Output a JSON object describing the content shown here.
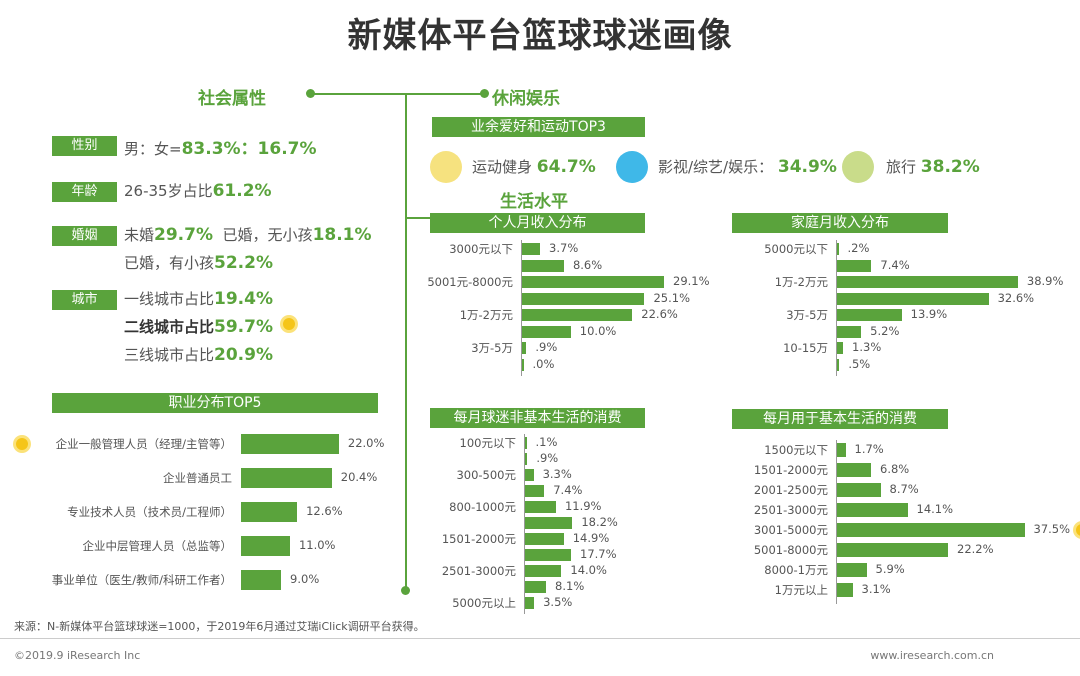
{
  "title": "新媒体平台篮球球迷画像",
  "social": {
    "heading": "社会属性",
    "gender": {
      "tag": "性别",
      "text": "男：女=",
      "value": "83.3%：16.7%"
    },
    "age": {
      "tag": "年龄",
      "text": "26-35岁占比",
      "value": "61.2%"
    },
    "marriage": {
      "tag": "婚姻",
      "t1": "未婚",
      "v1": "29.7%",
      "t2": "已婚，无小孩",
      "v2": "18.1%",
      "t3": "已婚，有小孩",
      "v3": "52.2%"
    },
    "city": {
      "tag": "城市",
      "t1": "一线城市占比",
      "v1": "19.4%",
      "t2": "二线城市占比",
      "v2": "59.7%",
      "t3": "三线城市占比",
      "v3": "20.9%"
    }
  },
  "leisure": {
    "heading": "休闲娱乐",
    "top3_header": "业余爱好和运动TOP3",
    "items": [
      {
        "icon": "fitness-icon",
        "label": "运动健身",
        "value": "64.7%",
        "color": "#f6e27f"
      },
      {
        "icon": "tv-icon",
        "label": "影视/综艺/娱乐：",
        "value": "34.9%",
        "color": "#3fb8e8"
      },
      {
        "icon": "travel-icon",
        "label": "旅行",
        "value": "38.2%",
        "color": "#c9dc8a"
      }
    ]
  },
  "living_heading": "生活水平",
  "colors": {
    "accent": "#5aa33c",
    "highlight": "#f5c518"
  },
  "chart_data": [
    {
      "type": "bar",
      "orientation": "horizontal",
      "title": "职业分布TOP5",
      "categories": [
        "企业一般管理人员（经理/主管等）",
        "企业普通员工",
        "专业技术人员（技术员/工程师）",
        "企业中层管理人员（总监等）",
        "事业单位（医生/教师/科研工作者）"
      ],
      "values": [
        22.0,
        20.4,
        12.6,
        11.0,
        9.0
      ],
      "value_labels": [
        "22.0%",
        "20.4%",
        "12.6%",
        "11.0%",
        "9.0%"
      ],
      "highlight_index": 0
    },
    {
      "type": "bar",
      "orientation": "horizontal",
      "title": "个人月收入分布",
      "categories": [
        "3000元以下",
        "",
        "5001元-8000元",
        "",
        "1万-2万元",
        "",
        "3万-5万",
        ""
      ],
      "values": [
        3.7,
        8.6,
        29.1,
        25.1,
        22.6,
        10.0,
        0.9,
        0.0
      ],
      "value_labels": [
        "3.7%",
        "8.6%",
        "29.1%",
        "25.1%",
        "22.6%",
        "10.0%",
        ".9%",
        ".0%"
      ]
    },
    {
      "type": "bar",
      "orientation": "horizontal",
      "title": "家庭月收入分布",
      "categories": [
        "5000元以下",
        "",
        "1万-2万元",
        "",
        "3万-5万",
        "",
        "10-15万",
        ""
      ],
      "values": [
        0.2,
        7.4,
        38.9,
        32.6,
        13.9,
        5.2,
        1.3,
        0.5
      ],
      "value_labels": [
        ".2%",
        "7.4%",
        "38.9%",
        "32.6%",
        "13.9%",
        "5.2%",
        "1.3%",
        ".5%"
      ]
    },
    {
      "type": "bar",
      "orientation": "horizontal",
      "title": "每月球迷非基本生活的消费",
      "categories": [
        "100元以下",
        "",
        "300-500元",
        "",
        "800-1000元",
        "",
        "1501-2000元",
        "",
        "2501-3000元",
        "",
        "5000元以上"
      ],
      "values": [
        0.1,
        0.9,
        3.3,
        7.4,
        11.9,
        18.2,
        14.9,
        17.7,
        14.0,
        8.1,
        3.5
      ],
      "value_labels": [
        ".1%",
        ".9%",
        "3.3%",
        "7.4%",
        "11.9%",
        "18.2%",
        "14.9%",
        "17.7%",
        "14.0%",
        "8.1%",
        "3.5%"
      ]
    },
    {
      "type": "bar",
      "orientation": "horizontal",
      "title": "每月用于基本生活的消费",
      "categories": [
        "1500元以下",
        "1501-2000元",
        "2001-2500元",
        "2501-3000元",
        "3001-5000元",
        "5001-8000元",
        "8000-1万元",
        "1万元以上"
      ],
      "values": [
        1.7,
        6.8,
        8.7,
        14.1,
        37.5,
        22.2,
        5.9,
        3.1
      ],
      "value_labels": [
        "1.7%",
        "6.8%",
        "8.7%",
        "14.1%",
        "37.5%",
        "22.2%",
        "5.9%",
        "3.1%"
      ],
      "highlight_index": 4
    }
  ],
  "source": "来源：N-新媒体平台篮球球迷=1000，于2019年6月通过艾瑞iClick调研平台获得。",
  "footer": {
    "copyright": "©2019.9 iResearch Inc",
    "website": "www.iresearch.com.cn"
  }
}
